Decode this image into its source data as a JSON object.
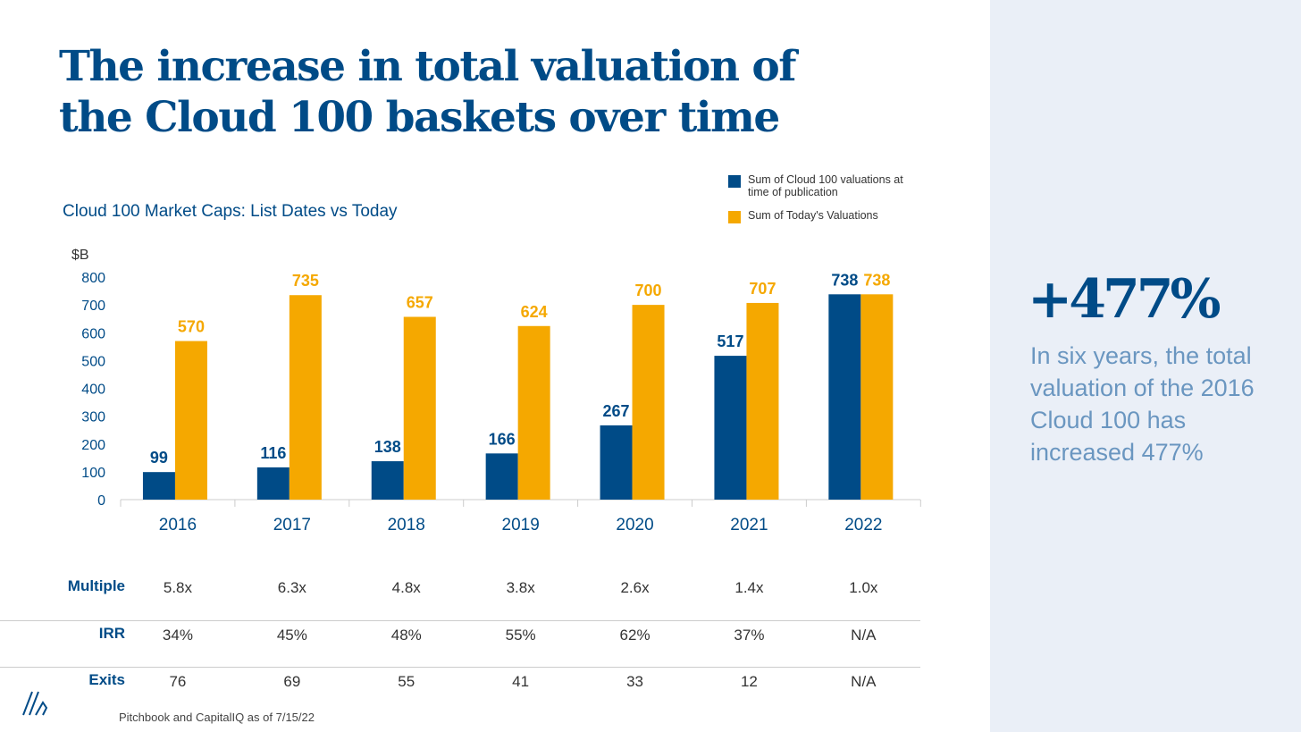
{
  "title": "The increase in total valuation of the Cloud 100 baskets over time",
  "colors": {
    "navy": "#004b87",
    "orange": "#f5a800",
    "panel": "#eaeff7"
  },
  "chart_data": {
    "type": "bar",
    "title": "Cloud 100 Market Caps: List Dates vs Today",
    "ylabel": "$B",
    "ylim": [
      0,
      800
    ],
    "yticks": [
      "0",
      "100",
      "200",
      "300",
      "400",
      "500",
      "600",
      "700",
      "800"
    ],
    "categories": [
      "2016",
      "2017",
      "2018",
      "2019",
      "2020",
      "2021",
      "2022"
    ],
    "series": [
      {
        "name": "Sum of Cloud 100 valuations at time of publication",
        "color": "#004b87",
        "values": [
          99,
          116,
          138,
          166,
          267,
          517,
          738
        ]
      },
      {
        "name": "Sum of Today's Valuations",
        "color": "#f5a800",
        "values": [
          570,
          735,
          657,
          624,
          700,
          707,
          738
        ]
      }
    ],
    "legend": "top-right"
  },
  "table": [
    {
      "label": "Multiple",
      "values": [
        "5.8x",
        "6.3x",
        "4.8x",
        "3.8x",
        "2.6x",
        "1.4x",
        "1.0x"
      ]
    },
    {
      "label": "IRR",
      "values": [
        "34%",
        "45%",
        "48%",
        "55%",
        "62%",
        "37%",
        "N/A"
      ]
    },
    {
      "label": "Exits",
      "values": [
        "76",
        "69",
        "55",
        "41",
        "33",
        "12",
        "N/A"
      ]
    }
  ],
  "highlight": {
    "value": "+477%",
    "text": "In six years, the total valuation of the 2016 Cloud 100 has increased 477%"
  },
  "source": "Pitchbook and CapitalIQ as of 7/15/22"
}
